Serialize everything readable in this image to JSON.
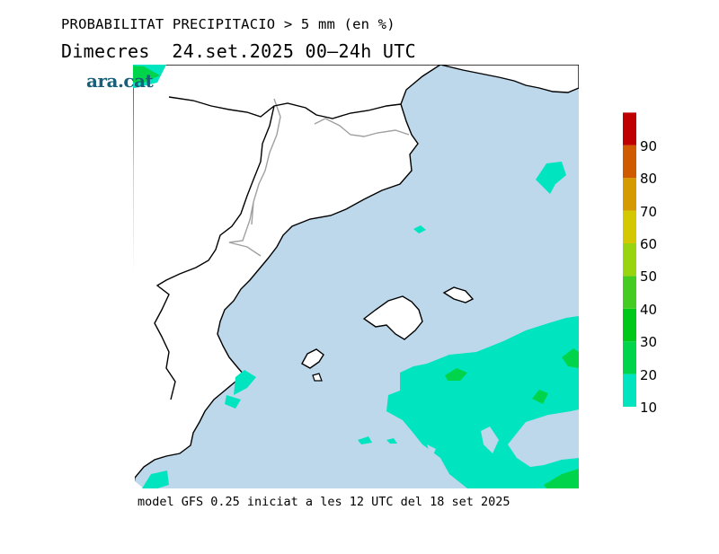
{
  "title": "PROBABILITAT PRECIPITACIO > 5 mm (en %)",
  "subtitle": "Dimecres  24.set.2025 00–24h UTC",
  "logo_text": "ara.cat",
  "footer": "model GFS 0.25 iniciat a les 12 UTC del 18 set 2025",
  "colors": {
    "sea": "#bcd8ea",
    "land": "#ffffff",
    "coast": "#000000",
    "border": "#a0a0a0"
  },
  "colorbar": {
    "levels": [
      "10",
      "20",
      "30",
      "40",
      "50",
      "60",
      "70",
      "80",
      "90"
    ],
    "colors": [
      "#00e4c0",
      "#00d44a",
      "#00c818",
      "#44cc22",
      "#99d411",
      "#d4c800",
      "#d49a00",
      "#d05a00",
      "#c00000"
    ]
  }
}
